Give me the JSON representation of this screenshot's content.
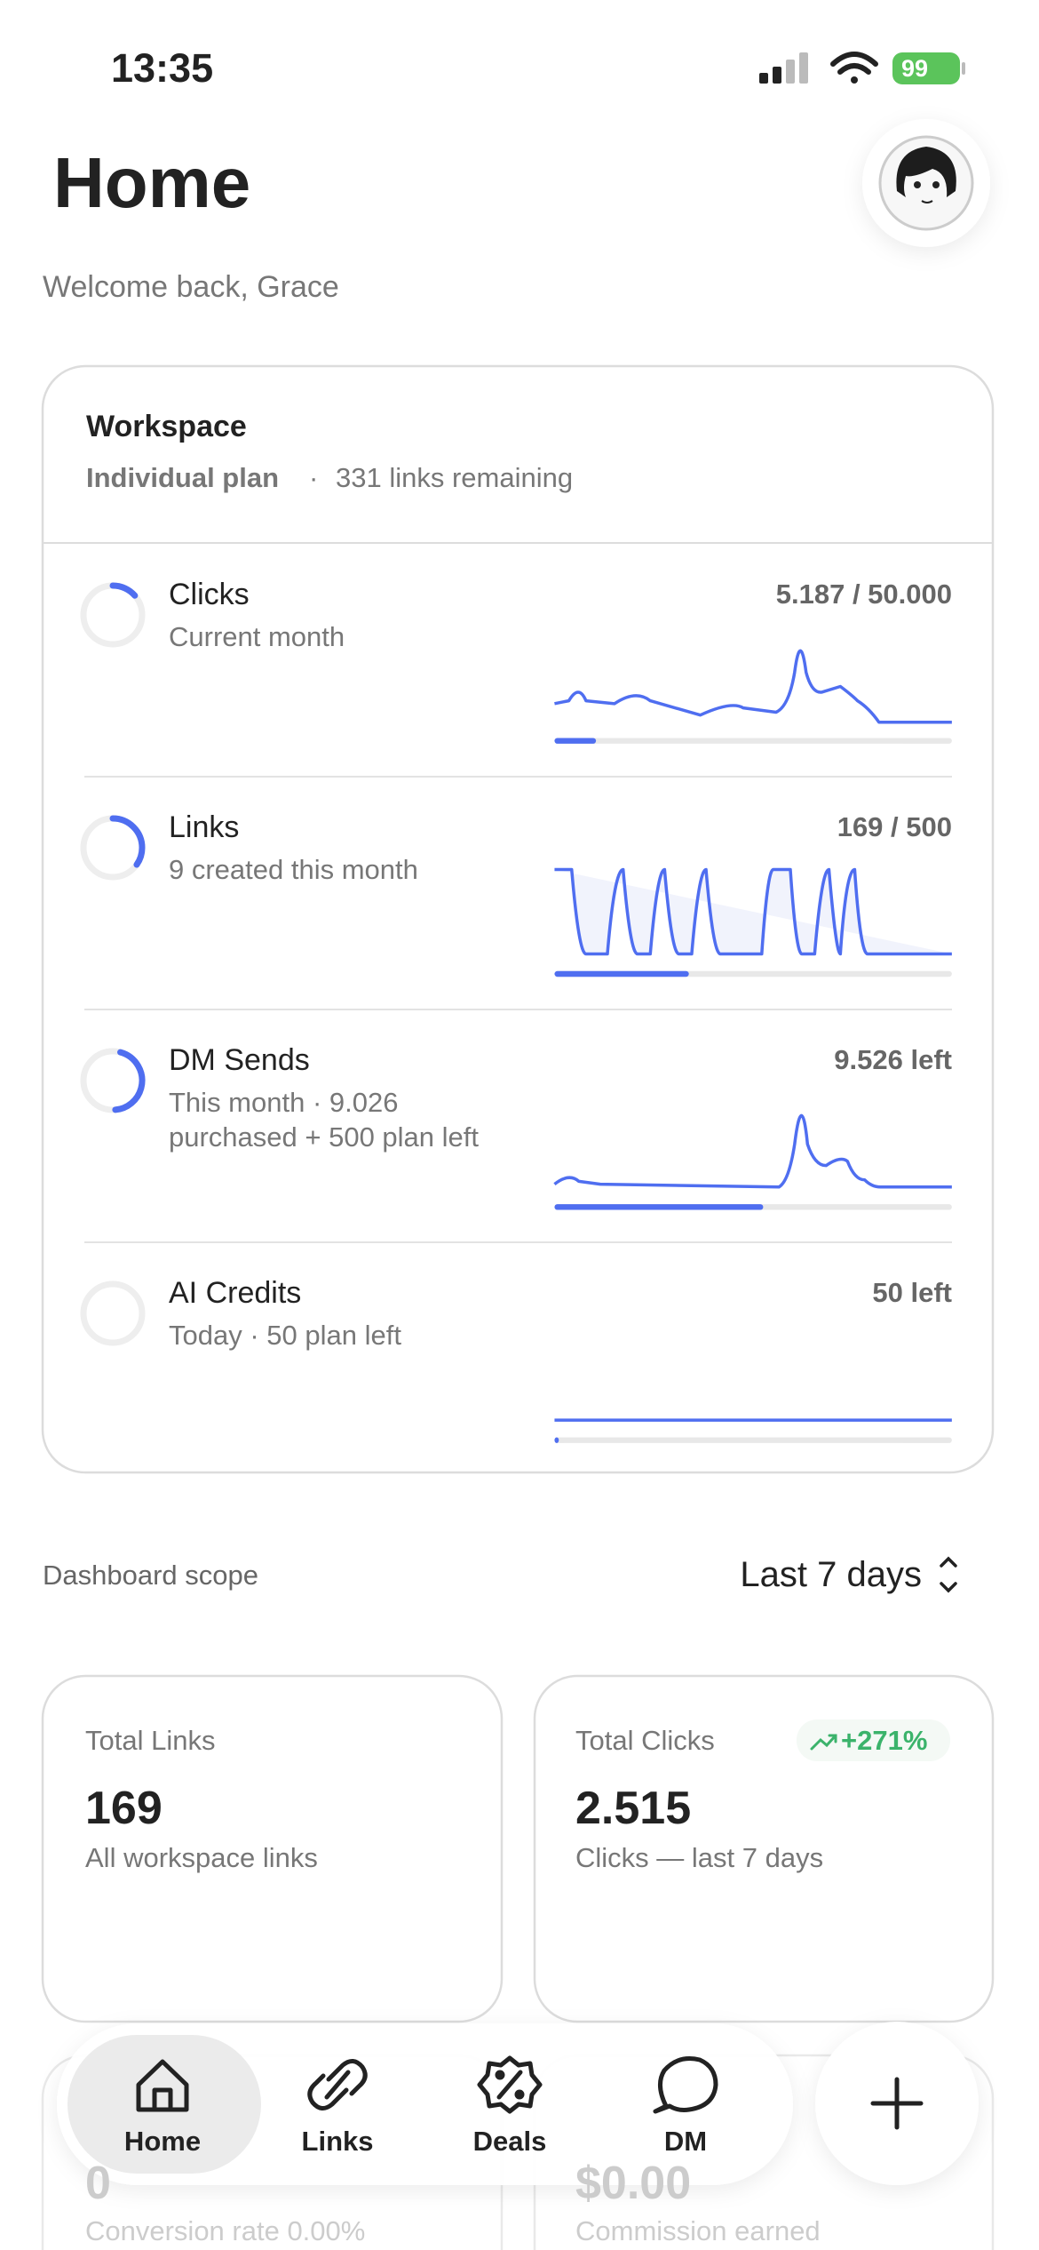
{
  "status_bar": {
    "time": "13:35",
    "battery": "99"
  },
  "header": {
    "title": "Home",
    "subtitle": "Welcome back, Grace"
  },
  "workspace": {
    "title": "Workspace",
    "plan": "Individual plan",
    "separator": "·",
    "remaining": "331 links remaining",
    "rows": [
      {
        "name": "Clicks",
        "detail": "Current month",
        "value": "5.187 / 50.000"
      },
      {
        "name": "Links",
        "detail": "9 created this month",
        "value": "169 / 500"
      },
      {
        "name": "DM Sends",
        "detail": "This month · 9.026 purchased + 500 plan left",
        "value": "9.526 left"
      },
      {
        "name": "AI Credits",
        "detail": "Today · 50 plan left",
        "value": "50 left"
      }
    ]
  },
  "scope": {
    "label": "Dashboard scope",
    "selected": "Last 7 days"
  },
  "stats": [
    {
      "title": "Total Links",
      "value": "169",
      "detail": "All workspace links"
    },
    {
      "title": "Total Clicks",
      "change": "+271%",
      "value": "2.515",
      "detail": "Clicks — last 7 days"
    },
    {
      "value": "0",
      "detail": "Conversion rate 0.00%"
    },
    {
      "value": "$0.00",
      "detail": "Commission earned"
    }
  ],
  "nav": [
    {
      "label": "Home"
    },
    {
      "label": "Links"
    },
    {
      "label": "Deals"
    },
    {
      "label": "DM"
    }
  ]
}
